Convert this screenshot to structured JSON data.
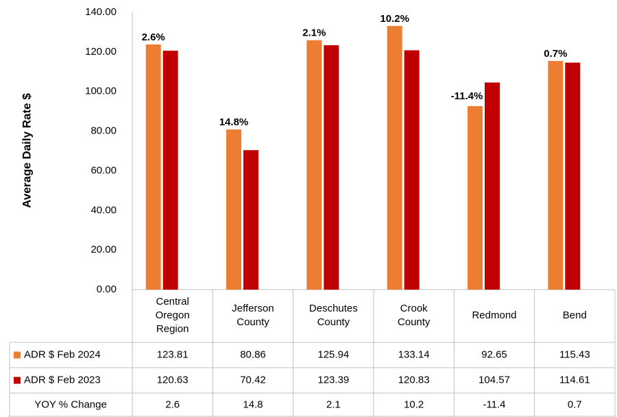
{
  "chart_data": {
    "type": "bar",
    "y_label": "Average Daily Rate $",
    "categories": [
      "Central Oregon Region",
      "Jefferson County",
      "Deschutes County",
      "Crook County",
      "Redmond",
      "Bend"
    ],
    "series": [
      {
        "name": "ADR $ Feb 2024",
        "color": "#ed7d31",
        "values": [
          123.81,
          80.86,
          125.94,
          133.14,
          92.65,
          115.43
        ]
      },
      {
        "name": "ADR $ Feb 2023",
        "color": "#c00000",
        "values": [
          120.63,
          70.42,
          123.39,
          120.83,
          104.57,
          114.61
        ]
      }
    ],
    "change": {
      "name": "YOY % Change",
      "values": [
        2.6,
        14.8,
        2.1,
        10.2,
        -11.4,
        0.7
      ],
      "value_labels": [
        "2.6%",
        "14.8%",
        "2.1%",
        "10.2%",
        "-11.4%",
        "0.7%"
      ],
      "label_color": "#000000",
      "negative_label_color": "#ff0000"
    },
    "ylim": [
      0,
      140
    ],
    "yticks": [
      {
        "value": 0,
        "label": "0.00"
      },
      {
        "value": 20,
        "label": "20.00"
      },
      {
        "value": 40,
        "label": "40.00"
      },
      {
        "value": 60,
        "label": "60.00"
      },
      {
        "value": 80,
        "label": "80.00"
      },
      {
        "value": 100,
        "label": "100.00"
      },
      {
        "value": 120,
        "label": "120.00"
      },
      {
        "value": 140,
        "label": "140.00"
      }
    ],
    "grid": false
  }
}
